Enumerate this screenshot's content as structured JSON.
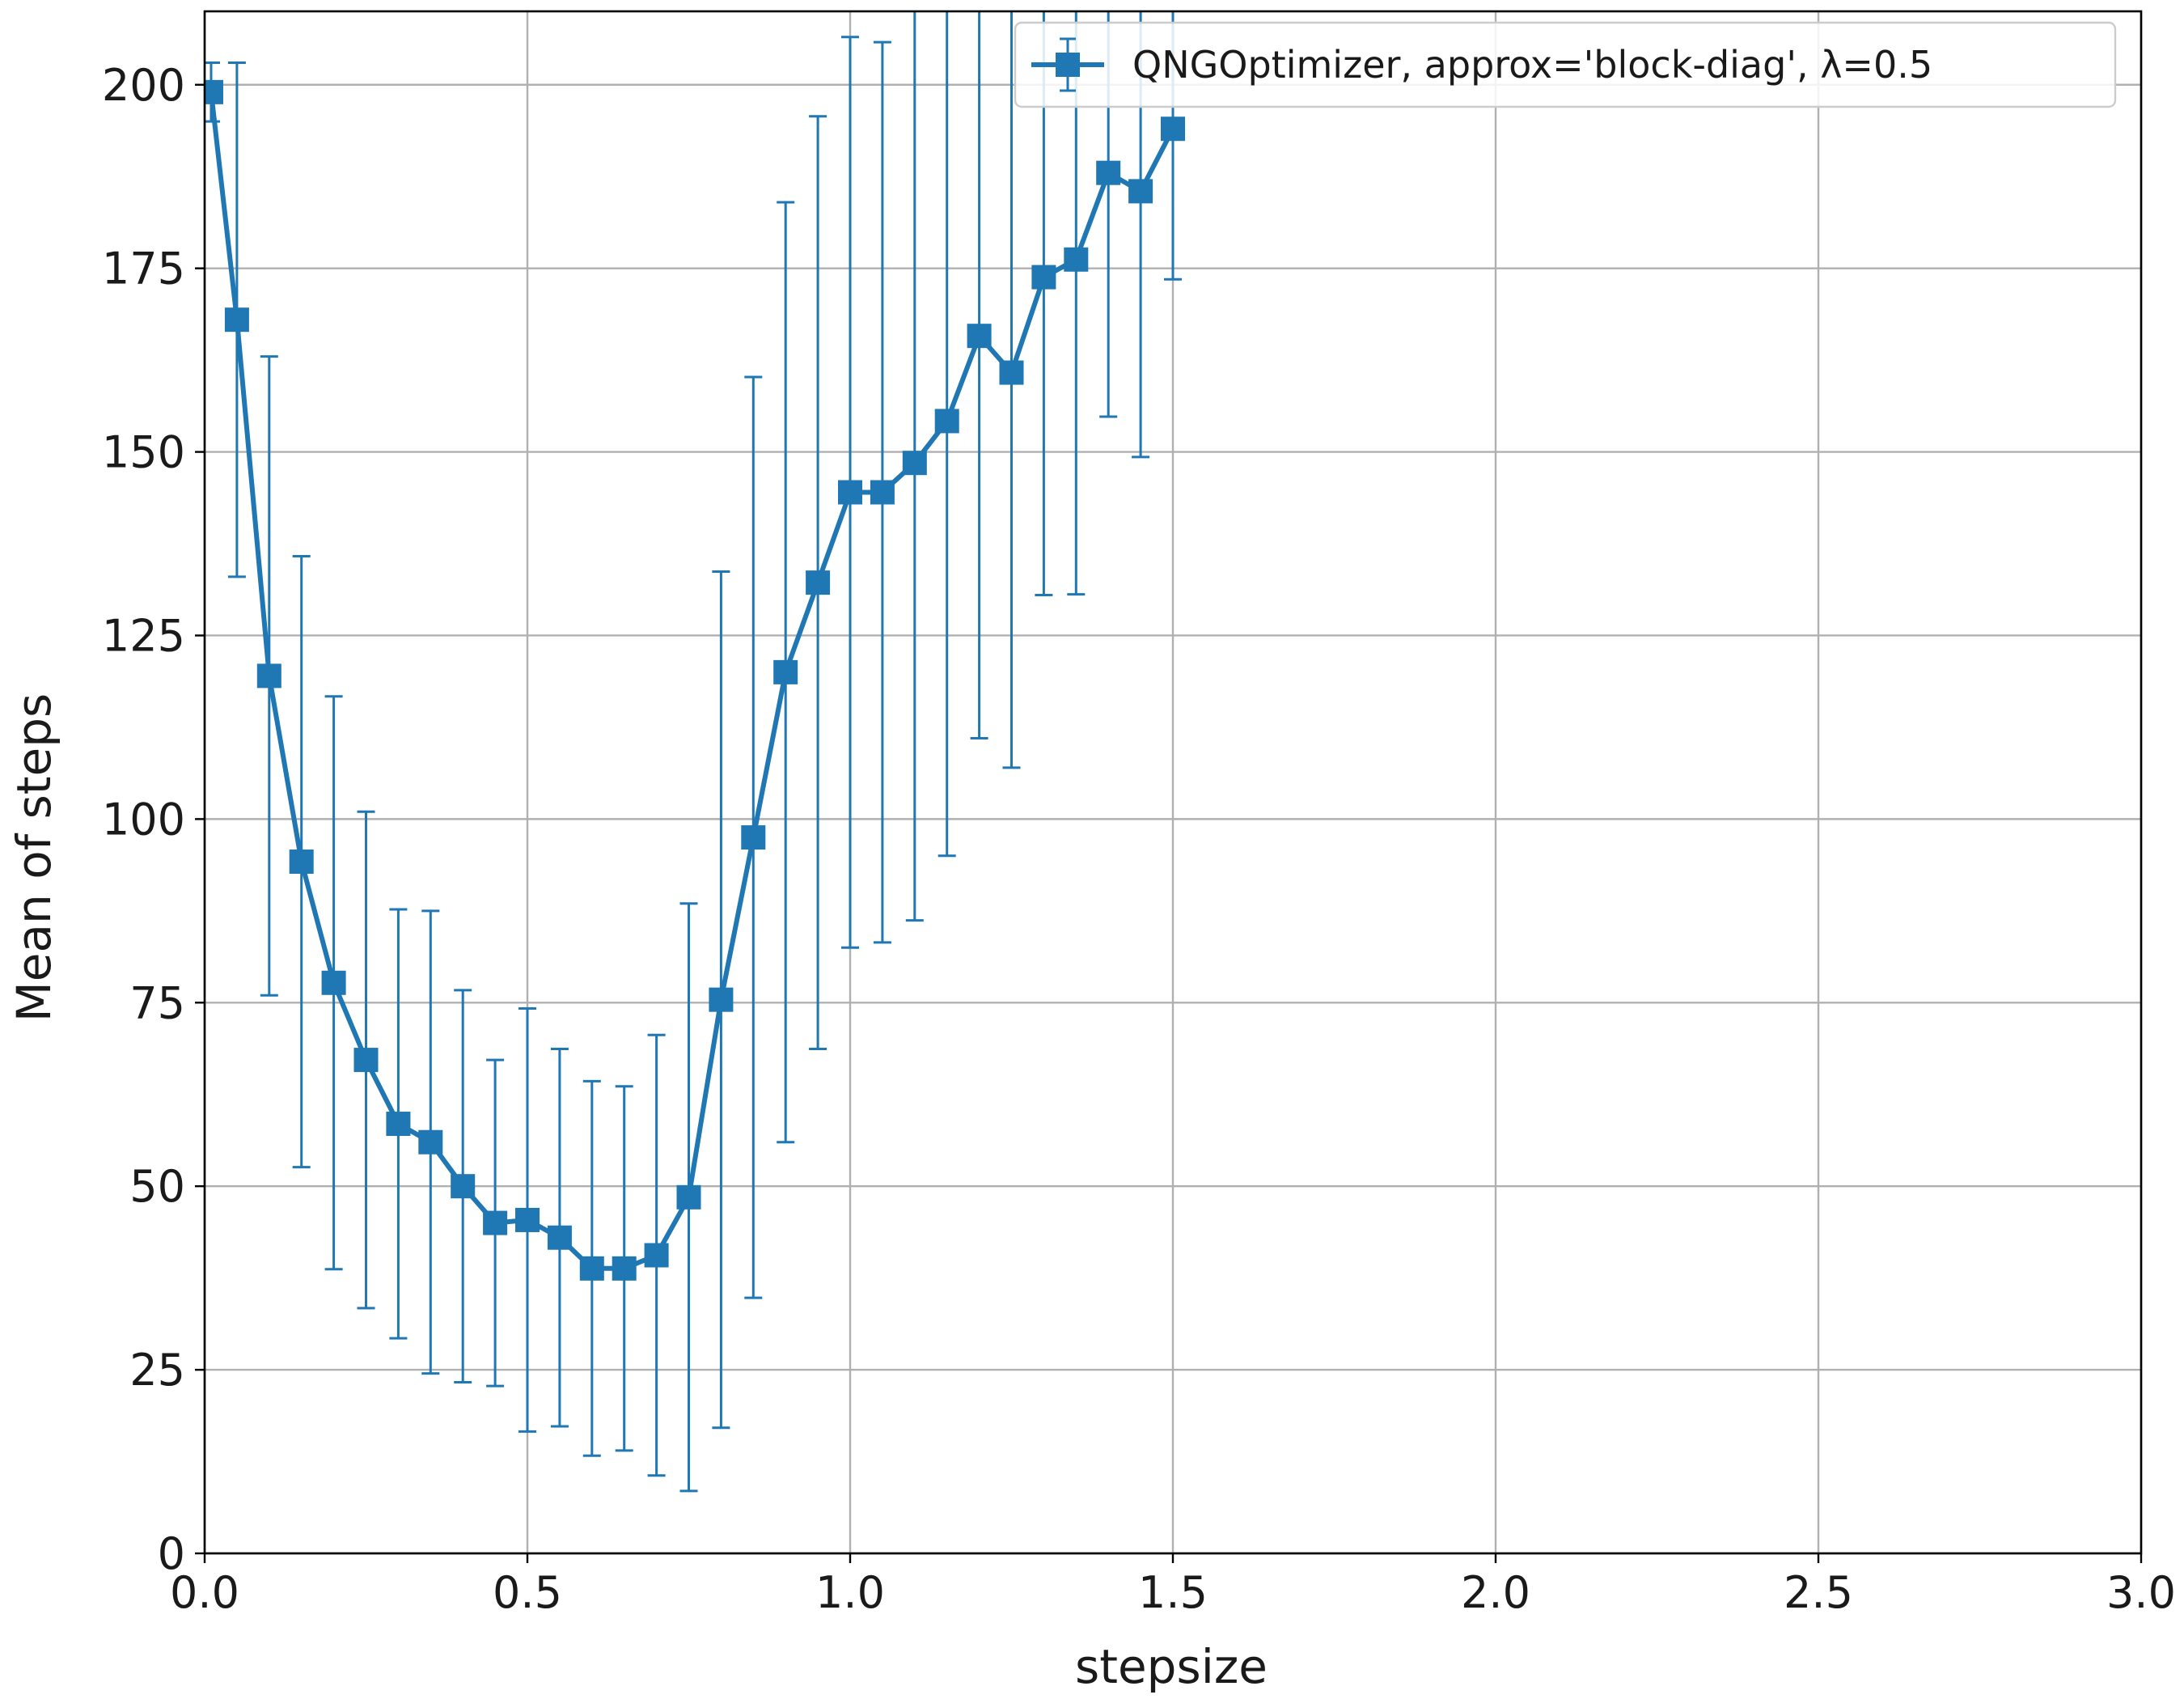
{
  "chart_data": {
    "type": "line",
    "xlabel": "stepsize",
    "ylabel": "Mean of steps",
    "xlim": [
      0.0,
      3.0
    ],
    "ylim": [
      0,
      210
    ],
    "grid": true,
    "legend_position": "top-right",
    "x_ticks": [
      "0.0",
      "0.5",
      "1.0",
      "1.5",
      "2.0",
      "2.5",
      "3.0"
    ],
    "y_ticks": [
      "0",
      "25",
      "50",
      "75",
      "100",
      "125",
      "150",
      "175",
      "200"
    ],
    "series": [
      {
        "name": "QNGOptimizer, approx='block-diag', λ=0.5",
        "color": "#1f77b4",
        "marker": "square",
        "error_bars": true,
        "x": [
          0.01,
          0.05,
          0.1,
          0.15,
          0.2,
          0.25,
          0.3,
          0.35,
          0.4,
          0.45,
          0.5,
          0.55,
          0.6,
          0.65,
          0.7,
          0.75,
          0.8,
          0.85,
          0.9,
          0.95,
          1.0,
          1.05,
          1.1,
          1.15,
          1.2,
          1.25,
          1.3,
          1.35,
          1.4,
          1.45,
          1.5
        ],
        "y": [
          199,
          168,
          119.5,
          94.2,
          77.7,
          67.2,
          58.5,
          56,
          50,
          45,
          45.4,
          43,
          38.8,
          38.8,
          40.6,
          48.5,
          75.4,
          97.5,
          120,
          132.2,
          144.5,
          144.5,
          148.5,
          154.2,
          165.8,
          160.8,
          173.8,
          176.2,
          188,
          185.5,
          194
        ],
        "err": [
          4,
          35,
          43.5,
          41.6,
          39,
          33.8,
          29.2,
          31.5,
          26.7,
          22.2,
          28.8,
          25.7,
          25.5,
          24.8,
          30,
          40,
          58.3,
          62.7,
          64,
          63.5,
          62,
          61.3,
          62.3,
          59.2,
          54.8,
          53.8,
          43.3,
          45.6,
          33.2,
          36.2,
          20.5
        ]
      }
    ]
  }
}
